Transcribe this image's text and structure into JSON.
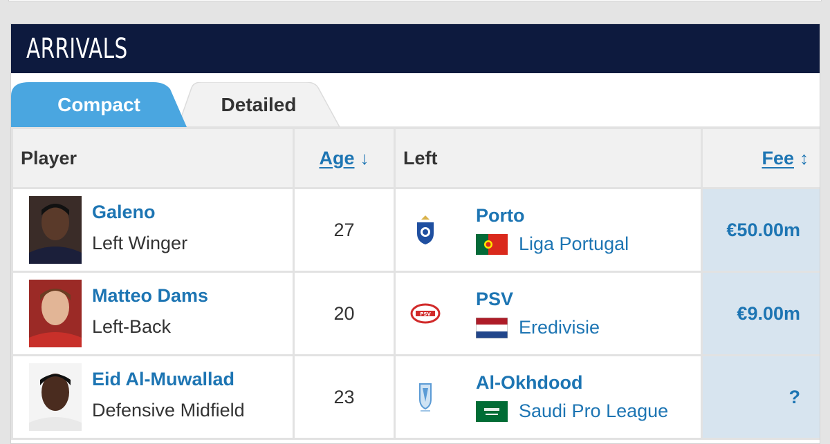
{
  "section": {
    "title": "ARRIVALS"
  },
  "tabs": {
    "compact": "Compact",
    "detailed": "Detailed"
  },
  "table": {
    "headers": {
      "player": "Player",
      "age": "Age",
      "left": "Left",
      "fee": "Fee"
    },
    "rows": [
      {
        "player": "Galeno",
        "position": "Left Winger",
        "age": "27",
        "club": "Porto",
        "league": "Liga Portugal",
        "fee": "€50.00m"
      },
      {
        "player": "Matteo Dams",
        "position": "Left-Back",
        "age": "20",
        "club": "PSV",
        "league": "Eredivisie",
        "fee": "€9.00m"
      },
      {
        "player": "Eid Al-Muwallad",
        "position": "Defensive Midfield",
        "age": "23",
        "club": "Al-Okhdood",
        "league": "Saudi Pro League",
        "fee": "?"
      }
    ]
  },
  "icons": {
    "age_sort": "arrow-down-icon",
    "fee_sort": "sort-updown-icon"
  },
  "colors": {
    "header_bg": "#0d1a3e",
    "tab_active": "#4aa6e0",
    "link": "#1d75b3",
    "fee_bg": "#d7e4ef"
  }
}
